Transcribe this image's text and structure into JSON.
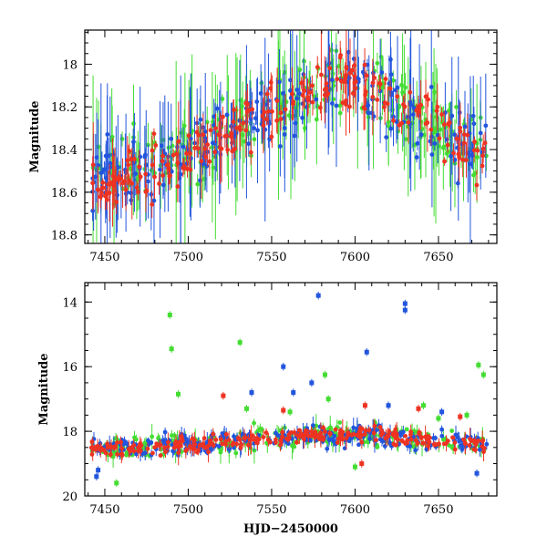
{
  "chart_data": [
    {
      "type": "scatter",
      "panel": "top",
      "xlabel": "",
      "ylabel": "Magnitude",
      "xlim": [
        7438,
        7685
      ],
      "ylim": [
        18.84,
        17.84
      ],
      "y_inverted": true,
      "x_ticks": [
        "7450",
        "7500",
        "7550",
        "7600",
        "7650"
      ],
      "y_ticks": [
        "18",
        "18.2",
        "18.4",
        "18.6",
        "18.8"
      ],
      "error_bars": true,
      "grid": false,
      "series": [
        {
          "color": "#ee3322",
          "trend": {
            "x": [
              7440,
              7460,
              7480,
              7500,
              7520,
              7540,
              7560,
              7580,
              7600,
              7620,
              7640,
              7660,
              7680
            ],
            "y": [
              18.57,
              18.54,
              18.49,
              18.43,
              18.36,
              18.28,
              18.19,
              18.11,
              18.07,
              18.16,
              18.27,
              18.36,
              18.41
            ]
          }
        },
        {
          "color": "#2255dd",
          "trend": {
            "x": [
              7440,
              7460,
              7480,
              7500,
              7520,
              7540,
              7560,
              7580,
              7600,
              7620,
              7640,
              7660,
              7680
            ],
            "y": [
              18.55,
              18.52,
              18.47,
              18.42,
              18.36,
              18.26,
              18.18,
              18.11,
              18.08,
              18.17,
              18.28,
              18.36,
              18.42
            ]
          }
        },
        {
          "color": "#44dd33",
          "trend": {
            "x": [
              7440,
              7460,
              7480,
              7500,
              7520,
              7540,
              7560,
              7580,
              7600,
              7620,
              7640,
              7660,
              7680
            ],
            "y": [
              18.5,
              18.48,
              18.44,
              18.4,
              18.34,
              18.25,
              18.17,
              18.1,
              18.09,
              18.17,
              18.28,
              18.35,
              18.4
            ]
          }
        }
      ]
    },
    {
      "type": "scatter",
      "panel": "bottom",
      "xlabel": "HJD−2450000",
      "ylabel": "Magnitude",
      "xlim": [
        7438,
        7685
      ],
      "ylim": [
        20,
        13.4
      ],
      "y_inverted": true,
      "x_ticks": [
        "7450",
        "7500",
        "7550",
        "7600",
        "7650"
      ],
      "y_ticks": [
        "14",
        "16",
        "18",
        "20"
      ],
      "error_bars": true,
      "grid": false,
      "series": [
        {
          "color": "#ee3322",
          "outliers": {
            "x": [
              7521,
              7557,
              7604,
              7638,
              7606,
              7663
            ],
            "y": [
              16.9,
              17.35,
              19.0,
              17.3,
              17.2,
              17.55
            ]
          }
        },
        {
          "color": "#2255dd",
          "outliers": {
            "x": [
              7578,
              7630,
              7630,
              7607,
              7557,
              7538,
              7574,
              7445,
              7446,
              7450,
              7563,
              7620,
              7652,
              7673
            ],
            "y": [
              13.8,
              14.05,
              14.25,
              15.55,
              16.0,
              16.8,
              16.5,
              19.4,
              19.2,
              18.5,
              16.8,
              17.2,
              17.4,
              19.3
            ]
          }
        },
        {
          "color": "#44dd33",
          "outliers": {
            "x": [
              7489,
              7490,
              7531,
              7582,
              7674,
              7677,
              7494,
              7535,
              7561,
              7584,
              7600,
              7641,
              7650,
              7457,
              7667
            ],
            "y": [
              14.4,
              15.45,
              15.25,
              16.25,
              15.95,
              16.25,
              16.85,
              17.3,
              17.4,
              17.0,
              19.1,
              17.2,
              17.6,
              19.6,
              17.5
            ]
          }
        }
      ]
    }
  ]
}
